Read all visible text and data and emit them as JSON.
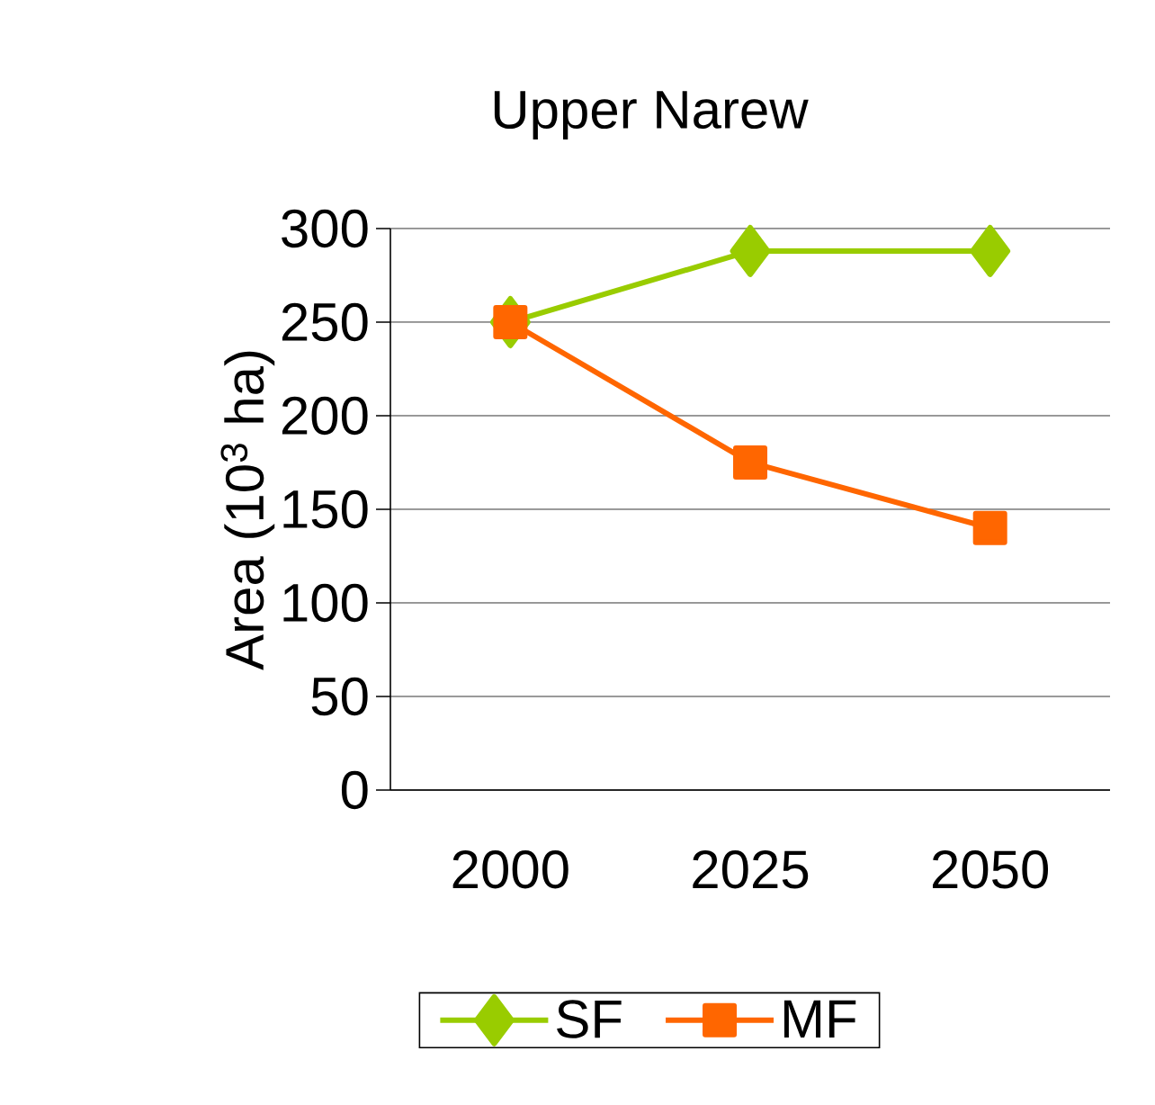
{
  "chart_data": {
    "type": "line",
    "title": "Upper Narew",
    "ylabel": "Area (10$^{3}$ ha)",
    "categories": [
      "2000",
      "2025",
      "2050"
    ],
    "series": [
      {
        "name": "SF",
        "color": "#99cc00",
        "marker": "diamond",
        "values": [
          250,
          288,
          288
        ]
      },
      {
        "name": "MF",
        "color": "#ff6600",
        "marker": "square",
        "values": [
          250,
          175,
          140
        ]
      }
    ],
    "ylim": [
      0,
      300
    ],
    "yticks": [
      0,
      50,
      100,
      150,
      200,
      250,
      300
    ],
    "grid": "y",
    "legend": "bottom"
  }
}
